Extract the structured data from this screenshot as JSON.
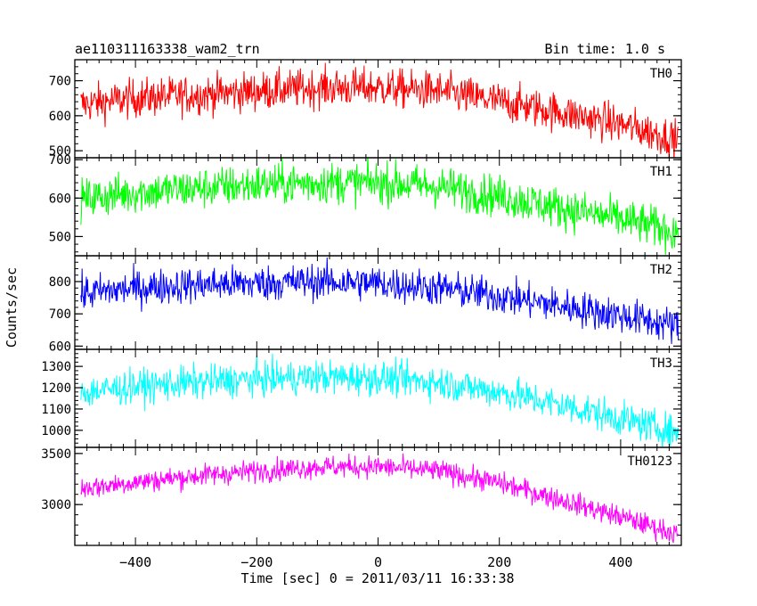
{
  "header": {
    "title": "ae110311163338_wam2_trn",
    "bin_time": "Bin time: 1.0 s"
  },
  "axes": {
    "ylabel": "Counts/sec",
    "xlabel": "Time [sec] 0 = 2011/03/11 16:33:38"
  },
  "chart_data": {
    "type": "line",
    "title": "ae110311163338_wam2_trn",
    "xlabel": "Time [sec] 0 = 2011/03/11 16:33:38",
    "ylabel": "Counts/sec",
    "xlim": [
      -500,
      500
    ],
    "x_ticks": [
      -400,
      -200,
      0,
      200,
      400
    ],
    "x_tick_labels": [
      "−400",
      "−200",
      "0",
      "200",
      "400"
    ],
    "bin_time_s": 1.0,
    "grid": false,
    "panels": [
      {
        "name": "TH0",
        "color": "#ff0000",
        "ylim": [
          480,
          760
        ],
        "y_ticks": [
          500,
          600,
          700
        ],
        "trend_x": [
          -500,
          -400,
          -300,
          -200,
          -100,
          0,
          100,
          200,
          300,
          400,
          500
        ],
        "trend_y": [
          630,
          650,
          660,
          670,
          680,
          680,
          670,
          640,
          610,
          575,
          530
        ],
        "scatter": 28
      },
      {
        "name": "TH1",
        "color": "#00ff00",
        "ylim": [
          450,
          705
        ],
        "y_ticks": [
          500,
          600,
          700
        ],
        "trend_x": [
          -500,
          -400,
          -300,
          -200,
          -100,
          0,
          100,
          200,
          300,
          400,
          500
        ],
        "trend_y": [
          595,
          615,
          625,
          635,
          640,
          640,
          630,
          605,
          575,
          545,
          510
        ],
        "scatter": 27
      },
      {
        "name": "TH2",
        "color": "#0000ff",
        "ylim": [
          590,
          880
        ],
        "y_ticks": [
          600,
          700,
          800
        ],
        "trend_x": [
          -500,
          -400,
          -300,
          -200,
          -100,
          0,
          100,
          200,
          300,
          400,
          500
        ],
        "trend_y": [
          760,
          780,
          790,
          795,
          800,
          795,
          780,
          755,
          725,
          695,
          660
        ],
        "scatter": 28
      },
      {
        "name": "TH3",
        "color": "#00ffff",
        "ylim": [
          920,
          1380
        ],
        "y_ticks": [
          1000,
          1100,
          1200,
          1300
        ],
        "trend_x": [
          -500,
          -400,
          -300,
          -200,
          -100,
          0,
          100,
          200,
          300,
          400,
          500
        ],
        "trend_y": [
          1175,
          1205,
          1225,
          1240,
          1250,
          1245,
          1225,
          1180,
          1120,
          1055,
          985
        ],
        "scatter": 40
      },
      {
        "name": "TH0123",
        "color": "#ff00ff",
        "ylim": [
          2600,
          3560
        ],
        "y_ticks": [
          3000,
          3500
        ],
        "trend_x": [
          -500,
          -400,
          -300,
          -200,
          -100,
          0,
          100,
          200,
          300,
          400,
          500
        ],
        "trend_y": [
          3150,
          3220,
          3280,
          3330,
          3370,
          3370,
          3330,
          3210,
          3050,
          2880,
          2700
        ],
        "scatter": 55
      }
    ]
  }
}
